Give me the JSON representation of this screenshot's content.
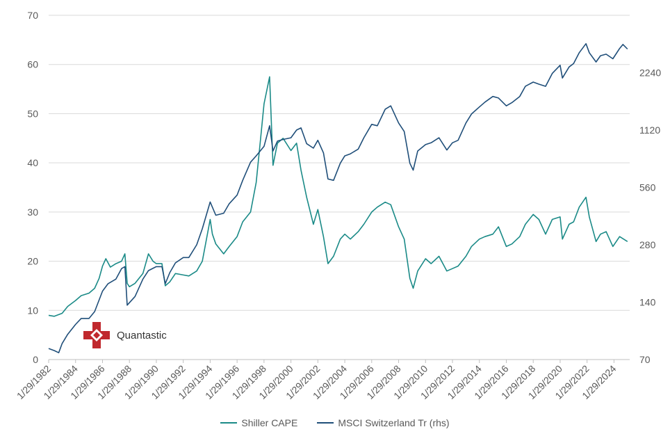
{
  "chart_data": {
    "type": "line",
    "x_tick_labels": [
      "1/29/1982",
      "1/29/1984",
      "1/29/1986",
      "1/29/1988",
      "1/29/1990",
      "1/29/1992",
      "1/29/1994",
      "1/29/1996",
      "1/29/1998",
      "1/29/2000",
      "1/29/2002",
      "1/29/2004",
      "1/29/2006",
      "1/29/2008",
      "1/29/2010",
      "1/29/2012",
      "1/29/2014",
      "1/29/2016",
      "1/29/2018",
      "1/29/2020",
      "1/29/2022",
      "1/29/2024"
    ],
    "y_left": {
      "ticks": [
        "0",
        "10",
        "20",
        "30",
        "40",
        "50",
        "60",
        "70"
      ],
      "ylim": [
        0,
        70
      ]
    },
    "y_right": {
      "scale": "log2",
      "ticks": [
        "70",
        "140",
        "280",
        "560",
        "1120",
        "2240"
      ],
      "ylim": [
        70,
        4480
      ]
    },
    "grid": "horizontal",
    "legend_position": "bottom",
    "series": [
      {
        "name": "Shiller  CAPE",
        "axis": "left",
        "color": "#1a8a87",
        "points": [
          [
            "1982-01",
            9.0
          ],
          [
            "1982-06",
            8.8
          ],
          [
            "1983-01",
            9.4
          ],
          [
            "1983-06",
            10.8
          ],
          [
            "1984-01",
            12.0
          ],
          [
            "1984-06",
            13.0
          ],
          [
            "1985-01",
            13.5
          ],
          [
            "1985-06",
            14.5
          ],
          [
            "1985-10",
            16.5
          ],
          [
            "1986-01",
            19.0
          ],
          [
            "1986-04",
            20.5
          ],
          [
            "1986-08",
            18.8
          ],
          [
            "1987-01",
            19.5
          ],
          [
            "1987-06",
            20.0
          ],
          [
            "1987-09",
            21.5
          ],
          [
            "1987-11",
            15.5
          ],
          [
            "1988-01",
            14.8
          ],
          [
            "1988-06",
            15.5
          ],
          [
            "1989-01",
            17.5
          ],
          [
            "1989-06",
            21.5
          ],
          [
            "1989-10",
            20.0
          ],
          [
            "1990-01",
            19.5
          ],
          [
            "1990-06",
            19.5
          ],
          [
            "1990-09",
            15.0
          ],
          [
            "1991-01",
            15.8
          ],
          [
            "1991-06",
            17.5
          ],
          [
            "1992-01",
            17.2
          ],
          [
            "1992-06",
            17.0
          ],
          [
            "1993-01",
            18.0
          ],
          [
            "1993-06",
            20.0
          ],
          [
            "1994-01",
            28.5
          ],
          [
            "1994-03",
            25.5
          ],
          [
            "1994-06",
            23.5
          ],
          [
            "1995-01",
            21.5
          ],
          [
            "1995-06",
            23.0
          ],
          [
            "1996-01",
            25.0
          ],
          [
            "1996-06",
            28.0
          ],
          [
            "1997-01",
            30.0
          ],
          [
            "1997-06",
            36.0
          ],
          [
            "1997-10",
            45.0
          ],
          [
            "1998-01",
            52.0
          ],
          [
            "1998-06",
            57.5
          ],
          [
            "1998-09",
            39.5
          ],
          [
            "1999-01",
            44.0
          ],
          [
            "1999-06",
            45.0
          ],
          [
            "2000-01",
            42.5
          ],
          [
            "2000-06",
            44.0
          ],
          [
            "2000-10",
            38.5
          ],
          [
            "2001-03",
            33.0
          ],
          [
            "2001-09",
            27.5
          ],
          [
            "2002-01",
            30.5
          ],
          [
            "2002-06",
            25.0
          ],
          [
            "2002-10",
            19.5
          ],
          [
            "2003-03",
            21.0
          ],
          [
            "2003-09",
            24.5
          ],
          [
            "2004-01",
            25.5
          ],
          [
            "2004-06",
            24.5
          ],
          [
            "2005-01",
            26.0
          ],
          [
            "2005-06",
            27.5
          ],
          [
            "2006-01",
            30.0
          ],
          [
            "2006-06",
            31.0
          ],
          [
            "2007-01",
            32.0
          ],
          [
            "2007-06",
            31.5
          ],
          [
            "2008-01",
            27.0
          ],
          [
            "2008-06",
            24.5
          ],
          [
            "2008-11",
            16.5
          ],
          [
            "2009-02",
            14.5
          ],
          [
            "2009-06",
            18.0
          ],
          [
            "2010-01",
            20.5
          ],
          [
            "2010-06",
            19.5
          ],
          [
            "2011-01",
            21.0
          ],
          [
            "2011-08",
            18.0
          ],
          [
            "2012-01",
            18.5
          ],
          [
            "2012-06",
            19.0
          ],
          [
            "2013-01",
            21.0
          ],
          [
            "2013-06",
            23.0
          ],
          [
            "2014-01",
            24.5
          ],
          [
            "2014-06",
            25.0
          ],
          [
            "2015-01",
            25.5
          ],
          [
            "2015-06",
            27.0
          ],
          [
            "2016-01",
            23.0
          ],
          [
            "2016-06",
            23.5
          ],
          [
            "2017-01",
            25.0
          ],
          [
            "2017-06",
            27.5
          ],
          [
            "2018-01",
            29.5
          ],
          [
            "2018-06",
            28.5
          ],
          [
            "2018-12",
            25.5
          ],
          [
            "2019-06",
            28.5
          ],
          [
            "2020-01",
            29.0
          ],
          [
            "2020-03",
            24.5
          ],
          [
            "2020-09",
            27.5
          ],
          [
            "2021-01",
            28.0
          ],
          [
            "2021-06",
            31.0
          ],
          [
            "2021-12",
            33.0
          ],
          [
            "2022-03",
            29.0
          ],
          [
            "2022-09",
            24.0
          ],
          [
            "2023-01",
            25.5
          ],
          [
            "2023-06",
            26.0
          ],
          [
            "2023-12",
            23.0
          ],
          [
            "2024-06",
            25.0
          ],
          [
            "2025-01",
            24.0
          ]
        ]
      },
      {
        "name": "MSCI Switzerland Tr (rhs)",
        "axis": "right",
        "color": "#1f4e79",
        "points": [
          [
            "1982-01",
            80
          ],
          [
            "1982-06",
            78
          ],
          [
            "1982-10",
            76
          ],
          [
            "1983-01",
            85
          ],
          [
            "1983-06",
            95
          ],
          [
            "1984-01",
            107
          ],
          [
            "1984-06",
            115
          ],
          [
            "1985-01",
            115
          ],
          [
            "1985-06",
            125
          ],
          [
            "1986-01",
            160
          ],
          [
            "1986-06",
            175
          ],
          [
            "1987-01",
            185
          ],
          [
            "1987-06",
            210
          ],
          [
            "1987-09",
            215
          ],
          [
            "1987-11",
            135
          ],
          [
            "1988-06",
            150
          ],
          [
            "1989-01",
            185
          ],
          [
            "1989-06",
            205
          ],
          [
            "1990-01",
            215
          ],
          [
            "1990-06",
            215
          ],
          [
            "1990-09",
            175
          ],
          [
            "1991-01",
            200
          ],
          [
            "1991-06",
            225
          ],
          [
            "1992-01",
            240
          ],
          [
            "1992-06",
            240
          ],
          [
            "1993-01",
            280
          ],
          [
            "1993-06",
            340
          ],
          [
            "1994-01",
            470
          ],
          [
            "1994-06",
            400
          ],
          [
            "1995-01",
            410
          ],
          [
            "1995-06",
            460
          ],
          [
            "1996-01",
            510
          ],
          [
            "1996-06",
            610
          ],
          [
            "1997-01",
            760
          ],
          [
            "1997-06",
            820
          ],
          [
            "1998-01",
            920
          ],
          [
            "1998-06",
            1180
          ],
          [
            "1998-09",
            870
          ],
          [
            "1999-01",
            980
          ],
          [
            "1999-06",
            1000
          ],
          [
            "2000-01",
            1020
          ],
          [
            "2000-06",
            1120
          ],
          [
            "2000-10",
            1150
          ],
          [
            "2001-03",
            950
          ],
          [
            "2001-09",
            900
          ],
          [
            "2002-01",
            990
          ],
          [
            "2002-06",
            850
          ],
          [
            "2002-10",
            620
          ],
          [
            "2003-03",
            610
          ],
          [
            "2003-09",
            750
          ],
          [
            "2004-01",
            820
          ],
          [
            "2004-06",
            840
          ],
          [
            "2005-01",
            890
          ],
          [
            "2005-06",
            1020
          ],
          [
            "2006-01",
            1200
          ],
          [
            "2006-06",
            1180
          ],
          [
            "2007-01",
            1440
          ],
          [
            "2007-06",
            1500
          ],
          [
            "2008-01",
            1220
          ],
          [
            "2008-06",
            1100
          ],
          [
            "2008-11",
            750
          ],
          [
            "2009-02",
            690
          ],
          [
            "2009-06",
            870
          ],
          [
            "2010-01",
            940
          ],
          [
            "2010-06",
            960
          ],
          [
            "2011-01",
            1020
          ],
          [
            "2011-08",
            880
          ],
          [
            "2012-01",
            960
          ],
          [
            "2012-06",
            990
          ],
          [
            "2013-01",
            1220
          ],
          [
            "2013-06",
            1360
          ],
          [
            "2014-01",
            1480
          ],
          [
            "2014-06",
            1570
          ],
          [
            "2015-01",
            1680
          ],
          [
            "2015-06",
            1650
          ],
          [
            "2016-01",
            1500
          ],
          [
            "2016-06",
            1560
          ],
          [
            "2017-01",
            1680
          ],
          [
            "2017-06",
            1900
          ],
          [
            "2018-01",
            2000
          ],
          [
            "2018-06",
            1950
          ],
          [
            "2018-12",
            1900
          ],
          [
            "2019-06",
            2220
          ],
          [
            "2020-01",
            2450
          ],
          [
            "2020-03",
            2100
          ],
          [
            "2020-09",
            2400
          ],
          [
            "2021-01",
            2500
          ],
          [
            "2021-06",
            2850
          ],
          [
            "2021-12",
            3180
          ],
          [
            "2022-03",
            2850
          ],
          [
            "2022-09",
            2550
          ],
          [
            "2023-01",
            2750
          ],
          [
            "2023-06",
            2800
          ],
          [
            "2023-12",
            2650
          ],
          [
            "2024-06",
            3000
          ],
          [
            "2024-09",
            3150
          ],
          [
            "2025-01",
            2980
          ]
        ]
      }
    ]
  },
  "logo": {
    "text": "Quantastic"
  }
}
